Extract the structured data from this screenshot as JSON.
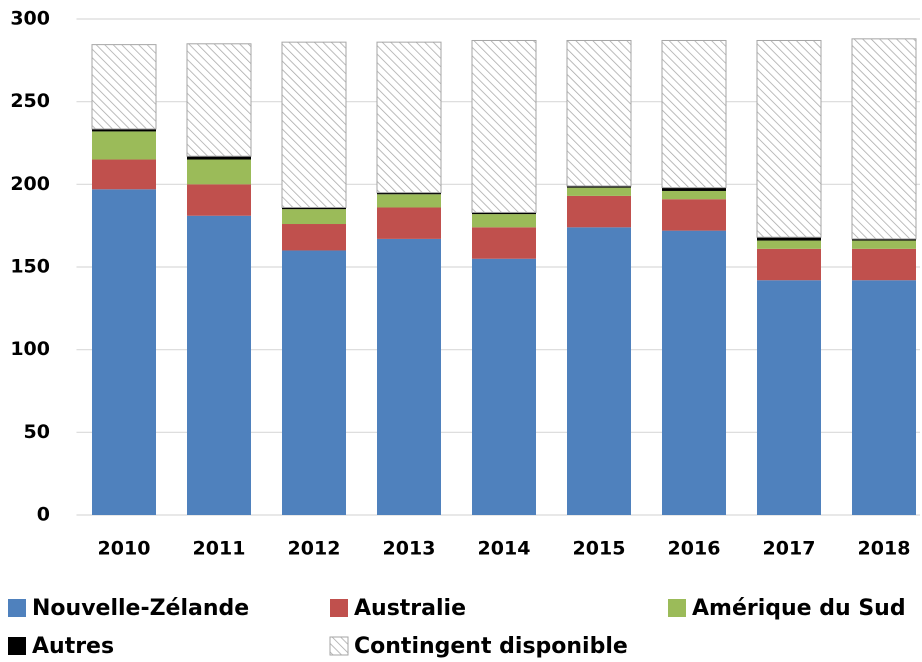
{
  "chart_data": {
    "type": "stacked_bar",
    "categories": [
      "2010",
      "2011",
      "2012",
      "2013",
      "2014",
      "2015",
      "2016",
      "2017",
      "2018"
    ],
    "series": [
      {
        "name": "Nouvelle-Zélande",
        "color": "#4f81bd",
        "values": [
          197,
          181,
          160,
          167,
          155,
          174,
          172,
          142,
          142
        ]
      },
      {
        "name": "Australie",
        "color": "#c0504d",
        "values": [
          18,
          19,
          16,
          19,
          19,
          19,
          19,
          19,
          19
        ]
      },
      {
        "name": "Amérique du Sud",
        "color": "#9bbb59",
        "values": [
          17,
          15,
          9,
          8,
          8,
          5,
          5,
          5,
          5
        ]
      },
      {
        "name": "Autres",
        "color": "#000000",
        "values": [
          1.5,
          2,
          1,
          1,
          1,
          1,
          2,
          2,
          1
        ]
      },
      {
        "name": "Contingent disponible",
        "color": "hatch",
        "values": [
          51,
          68,
          100,
          91,
          104,
          88,
          89,
          119,
          121
        ]
      }
    ],
    "ylim": [
      0,
      300
    ],
    "yticks": [
      0,
      50,
      100,
      150,
      200,
      250,
      300
    ],
    "grid": true
  }
}
